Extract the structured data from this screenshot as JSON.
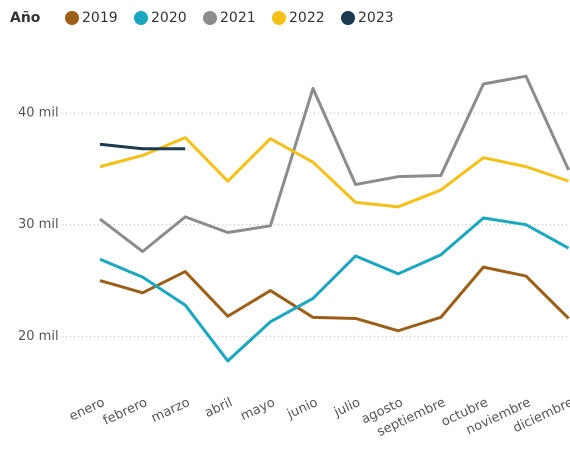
{
  "chart_data": {
    "type": "line",
    "legend_title": "Año",
    "categories": [
      "enero",
      "febrero",
      "marzo",
      "abril",
      "mayo",
      "junio",
      "julio",
      "agosto",
      "septiembre",
      "octubre",
      "noviembre",
      "diciembre"
    ],
    "series": [
      {
        "name": "2019",
        "color": "#9c5f17",
        "values": [
          25000,
          23900,
          25800,
          21800,
          24100,
          21700,
          21600,
          20500,
          21700,
          26200,
          25400,
          21600
        ]
      },
      {
        "name": "2020",
        "color": "#1aa7c0",
        "values": [
          26900,
          25300,
          22800,
          17800,
          21300,
          23400,
          27200,
          25600,
          27300,
          30600,
          30000,
          27900
        ]
      },
      {
        "name": "2021",
        "color": "#8c8c8c",
        "values": [
          30500,
          27600,
          30700,
          29300,
          29900,
          42200,
          33600,
          34300,
          34400,
          42600,
          43300,
          34900
        ]
      },
      {
        "name": "2022",
        "color": "#f5c018",
        "values": [
          35200,
          36200,
          37800,
          33900,
          37700,
          35600,
          32000,
          31600,
          33100,
          36000,
          35200,
          33900
        ]
      },
      {
        "name": "2023",
        "color": "#1b3a4f",
        "values": [
          37200,
          36800,
          36800,
          null,
          null,
          null,
          null,
          null,
          null,
          null,
          null,
          null
        ]
      }
    ],
    "ylim": [
      16000,
      44750
    ],
    "yticks": [
      {
        "value": 20000,
        "label": "20 mil"
      },
      {
        "value": 30000,
        "label": "30 mil"
      },
      {
        "value": 40000,
        "label": "40 mil"
      }
    ],
    "grid": true
  }
}
